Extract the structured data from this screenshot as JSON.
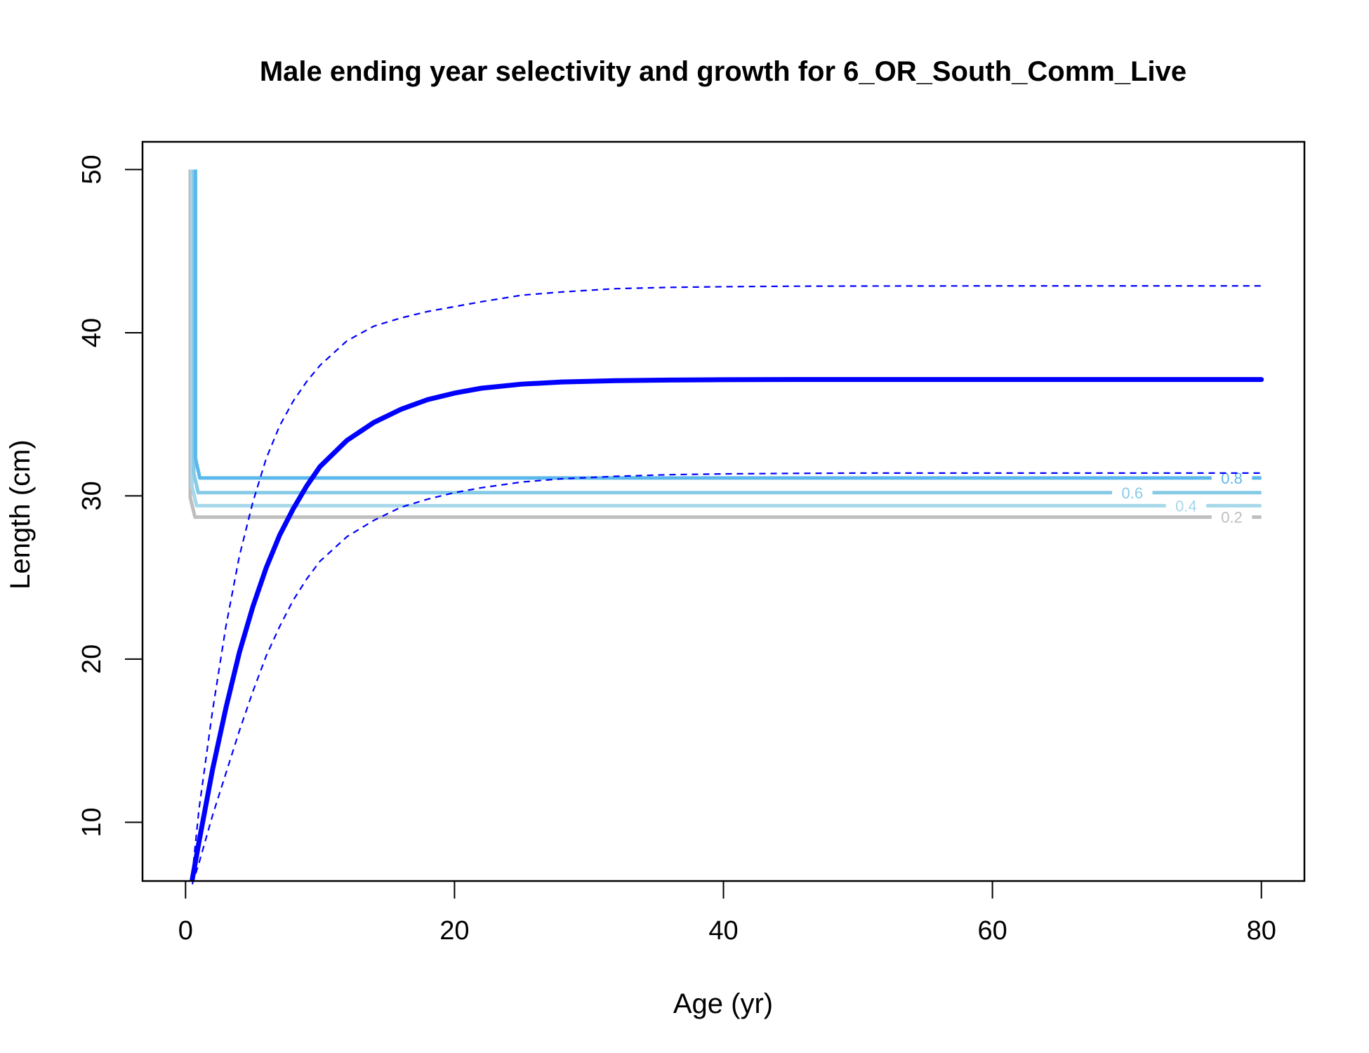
{
  "chart_data": {
    "type": "line",
    "title": "Male ending year selectivity and growth for 6_OR_South_Comm_Live",
    "xlabel": "Age (yr)",
    "ylabel": "Length (cm)",
    "xlim": [
      -3.2,
      83.2
    ],
    "ylim": [
      6.4,
      51.7
    ],
    "x_ticks": [
      0,
      20,
      40,
      60,
      80
    ],
    "y_ticks": [
      10,
      20,
      30,
      40,
      50
    ],
    "grid": false,
    "growth": {
      "name": "",
      "color": "#0000ff",
      "x": [
        0.5,
        1,
        2,
        3,
        4,
        5,
        6,
        7,
        8,
        9,
        10,
        12,
        14,
        16,
        18,
        20,
        22,
        25,
        28,
        32,
        36,
        40,
        45,
        50,
        60,
        70,
        80
      ],
      "mean": [
        6.5,
        8.8,
        13.2,
        17.0,
        20.4,
        23.2,
        25.6,
        27.6,
        29.2,
        30.6,
        31.8,
        33.4,
        34.5,
        35.3,
        35.9,
        36.3,
        36.6,
        36.85,
        36.98,
        37.06,
        37.1,
        37.12,
        37.13,
        37.13,
        37.13,
        37.13,
        37.13
      ],
      "upper": [
        6.8,
        10.8,
        16.8,
        22.0,
        26.3,
        29.6,
        32.3,
        34.3,
        35.8,
        37.0,
        38.0,
        39.5,
        40.4,
        40.9,
        41.3,
        41.6,
        41.9,
        42.3,
        42.5,
        42.7,
        42.78,
        42.82,
        42.85,
        42.86,
        42.87,
        42.87,
        42.87
      ],
      "lower": [
        6.2,
        7.5,
        10.4,
        13.0,
        15.6,
        18.0,
        20.2,
        22.0,
        23.6,
        24.9,
        26.0,
        27.5,
        28.5,
        29.3,
        29.8,
        30.2,
        30.5,
        30.85,
        31.05,
        31.2,
        31.3,
        31.35,
        31.38,
        31.4,
        31.4,
        31.4,
        31.4
      ]
    },
    "selectivity_contours": [
      {
        "level": "0.2",
        "color": "#bebebe",
        "length": 28.7,
        "top": 50
      },
      {
        "level": "0.4",
        "color": "#a6d8ea",
        "length": 29.4,
        "top": 50
      },
      {
        "level": "0.6",
        "color": "#86cbe6",
        "length": 30.2,
        "top": 50
      },
      {
        "level": "0.8",
        "color": "#5cb8ec",
        "length": 31.1,
        "top": 50
      }
    ]
  }
}
